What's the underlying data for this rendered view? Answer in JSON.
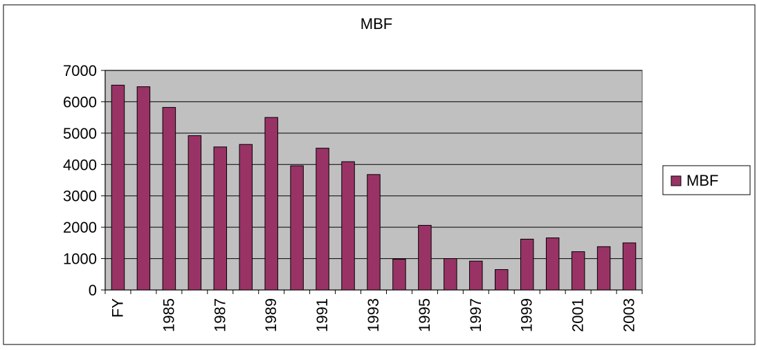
{
  "chart_data": {
    "type": "bar",
    "title": "MBF",
    "xlabel": "",
    "ylabel": "",
    "ylim": [
      0,
      7000
    ],
    "yticks": [
      0,
      1000,
      2000,
      3000,
      4000,
      5000,
      6000,
      7000
    ],
    "grid": true,
    "legend": "right",
    "categories": [
      "FY",
      "",
      "1985",
      "",
      "1987",
      "",
      "1989",
      "",
      "1991",
      "",
      "1993",
      "",
      "1995",
      "",
      "1997",
      "",
      "1999",
      "",
      "2001",
      "",
      "2003"
    ],
    "series": [
      {
        "name": "MBF",
        "color": "#993366",
        "values": [
          6530,
          6480,
          5820,
          4920,
          4560,
          4640,
          5500,
          3960,
          4520,
          4090,
          3680,
          980,
          2060,
          1000,
          920,
          650,
          1620,
          1660,
          1220,
          1380,
          1500
        ]
      }
    ],
    "plot_background": "#c0c0c0"
  }
}
